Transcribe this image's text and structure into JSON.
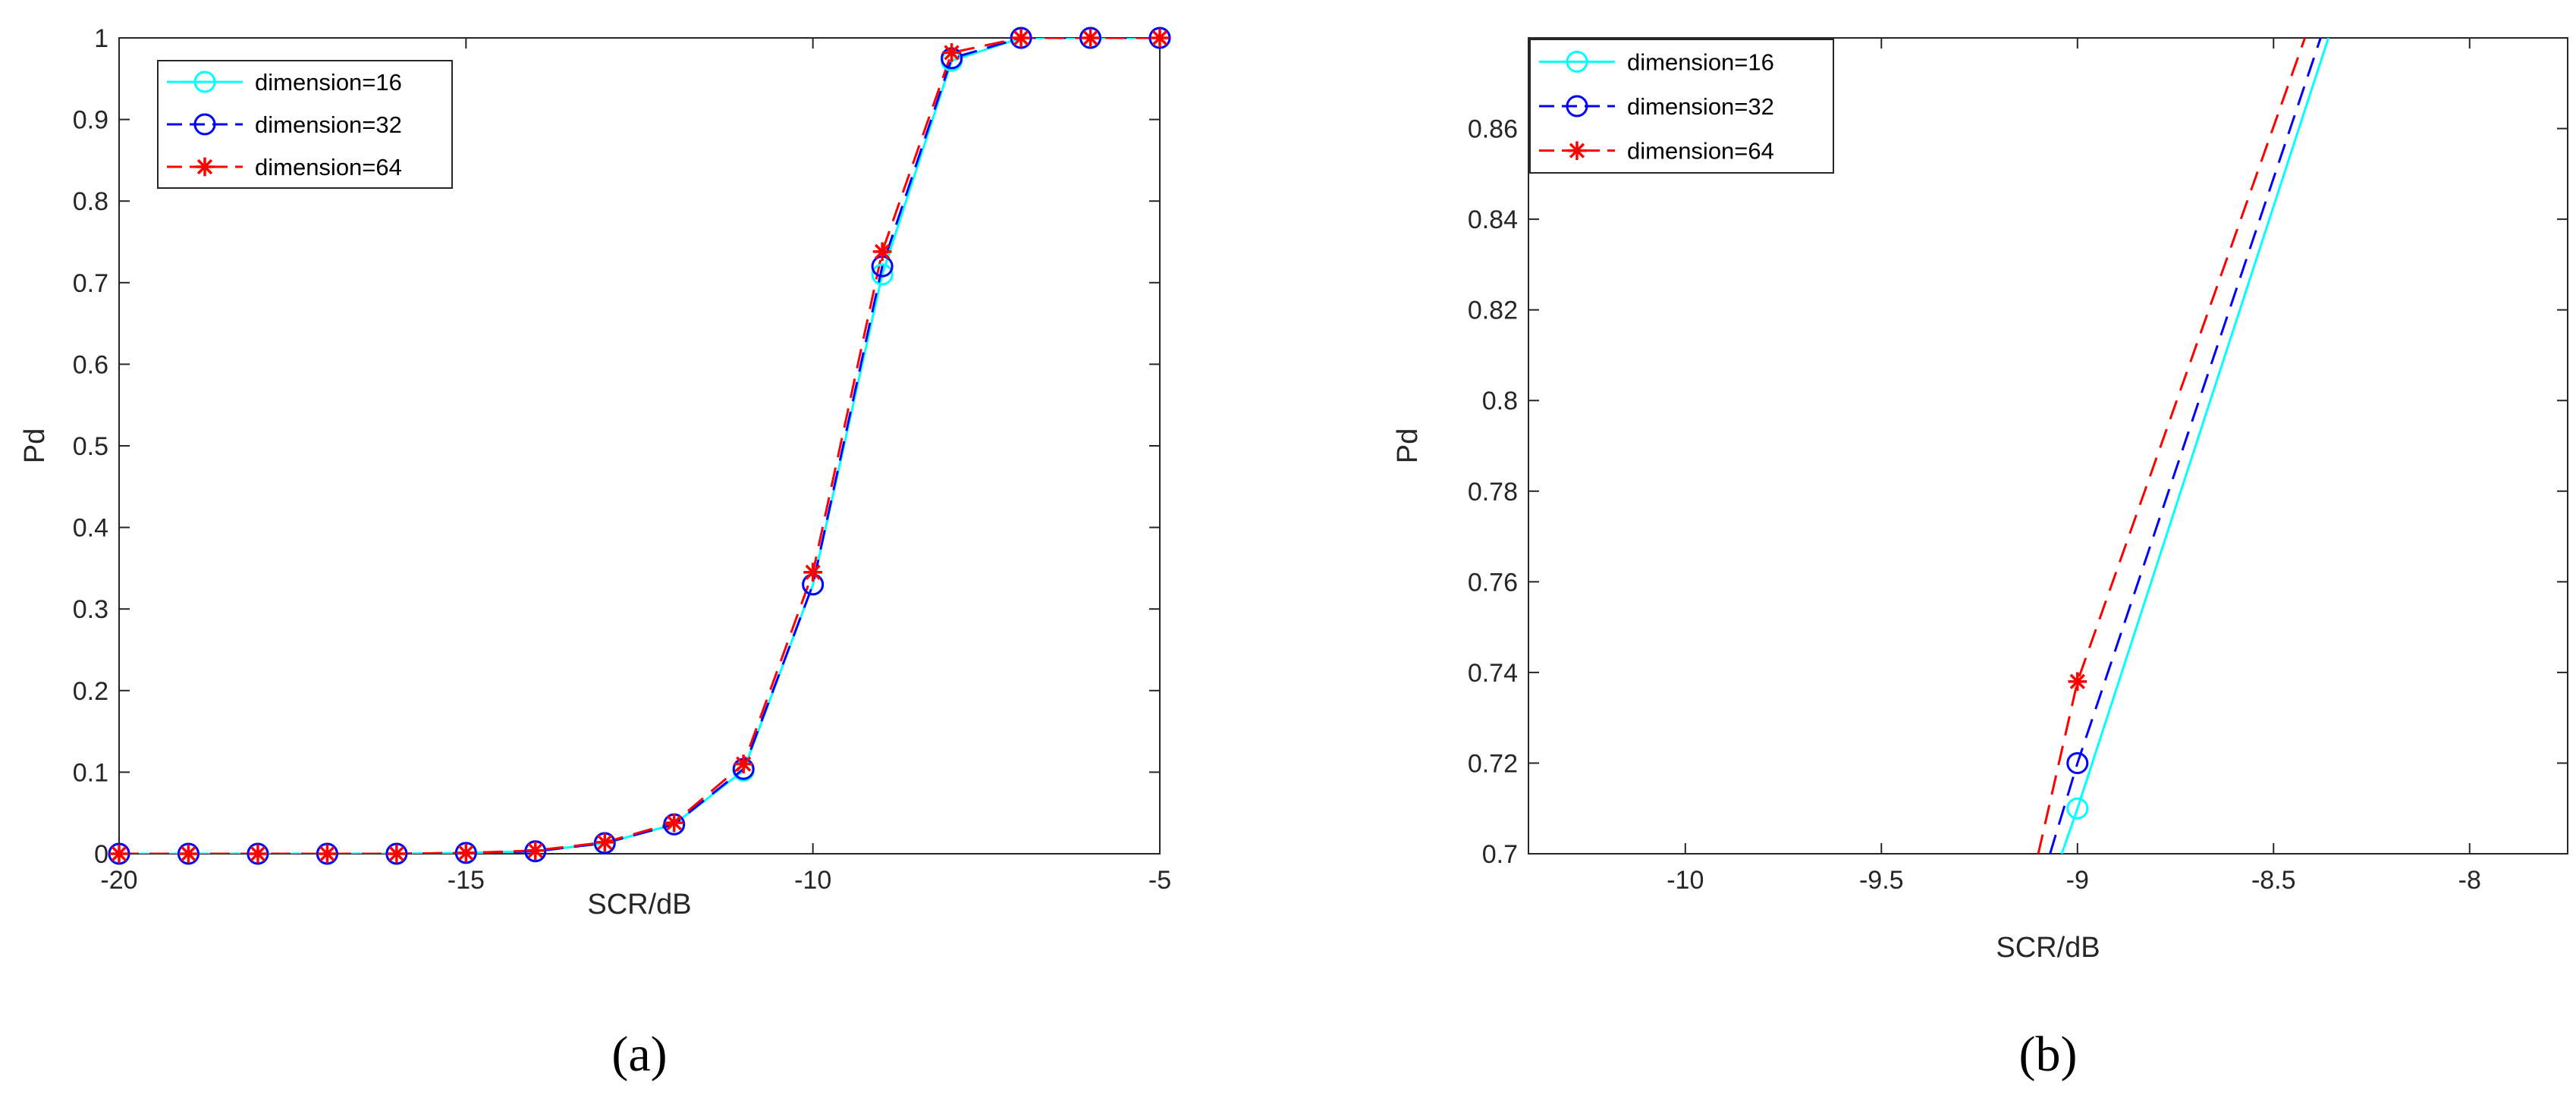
{
  "chart_data": [
    {
      "type": "line",
      "xlabel": "SCR/dB",
      "ylabel": "Pd",
      "xlim": [
        -20,
        -5
      ],
      "ylim": [
        0,
        1
      ],
      "xticks": [
        "-20",
        "-15",
        "-10",
        "-5"
      ],
      "yticks": [
        "0",
        "0.1",
        "0.2",
        "0.3",
        "0.4",
        "0.5",
        "0.6",
        "0.7",
        "0.8",
        "0.9",
        "1"
      ],
      "grid": false,
      "legend_position": "top-left",
      "caption": "(a)",
      "x": [
        -20,
        -19,
        -18,
        -17,
        -16,
        -15,
        -14,
        -13,
        -12,
        -11,
        -10,
        -9,
        -8,
        -7,
        -6,
        -5
      ],
      "series": [
        {
          "name": "dimension=16",
          "color": "#00ffff",
          "line": "solid",
          "marker": "circle",
          "values": [
            0.0,
            0.0,
            0.0,
            0.0,
            0.0,
            0.001,
            0.003,
            0.013,
            0.036,
            0.102,
            0.33,
            0.71,
            0.972,
            1.0,
            1.0,
            1.0
          ]
        },
        {
          "name": "dimension=32",
          "color": "#0000ff",
          "line": "dashed",
          "marker": "circle",
          "values": [
            0.0,
            0.0,
            0.0,
            0.0,
            0.0,
            0.001,
            0.003,
            0.013,
            0.036,
            0.104,
            0.33,
            0.72,
            0.975,
            1.0,
            1.0,
            1.0
          ]
        },
        {
          "name": "dimension=64",
          "color": "#ff0000",
          "line": "dashed",
          "marker": "star",
          "values": [
            0.0,
            0.0,
            0.0,
            0.0,
            0.0,
            0.001,
            0.004,
            0.014,
            0.038,
            0.11,
            0.345,
            0.738,
            0.982,
            1.0,
            1.0,
            1.0
          ]
        }
      ]
    },
    {
      "type": "line",
      "xlabel": "SCR/dB",
      "ylabel": "Pd",
      "xlim": [
        -10.4,
        -7.75
      ],
      "ylim": [
        0.7,
        0.88
      ],
      "xticks": [
        "-10",
        "-9.5",
        "-9",
        "-8.5",
        "-8"
      ],
      "yticks": [
        "0.7",
        "0.72",
        "0.74",
        "0.76",
        "0.78",
        "0.8",
        "0.82",
        "0.84",
        "0.86"
      ],
      "grid": false,
      "legend_position": "top-left",
      "caption": "(b)",
      "series": [
        {
          "name": "dimension=16",
          "color": "#00ffff",
          "line": "solid",
          "marker": "circle",
          "x": [
            -9.04,
            -9.0,
            -8.36
          ],
          "values": [
            0.7,
            0.71,
            0.88
          ],
          "marker_indices": [
            1
          ]
        },
        {
          "name": "dimension=32",
          "color": "#0000ff",
          "line": "dashed",
          "marker": "circle",
          "x": [
            -9.07,
            -9.0,
            -8.38
          ],
          "values": [
            0.7,
            0.72,
            0.88
          ],
          "marker_indices": [
            1
          ]
        },
        {
          "name": "dimension=64",
          "color": "#ff0000",
          "line": "dashed",
          "marker": "star",
          "x": [
            -9.1,
            -9.0,
            -8.42
          ],
          "values": [
            0.7,
            0.738,
            0.88
          ],
          "marker_indices": [
            1
          ]
        }
      ]
    }
  ]
}
